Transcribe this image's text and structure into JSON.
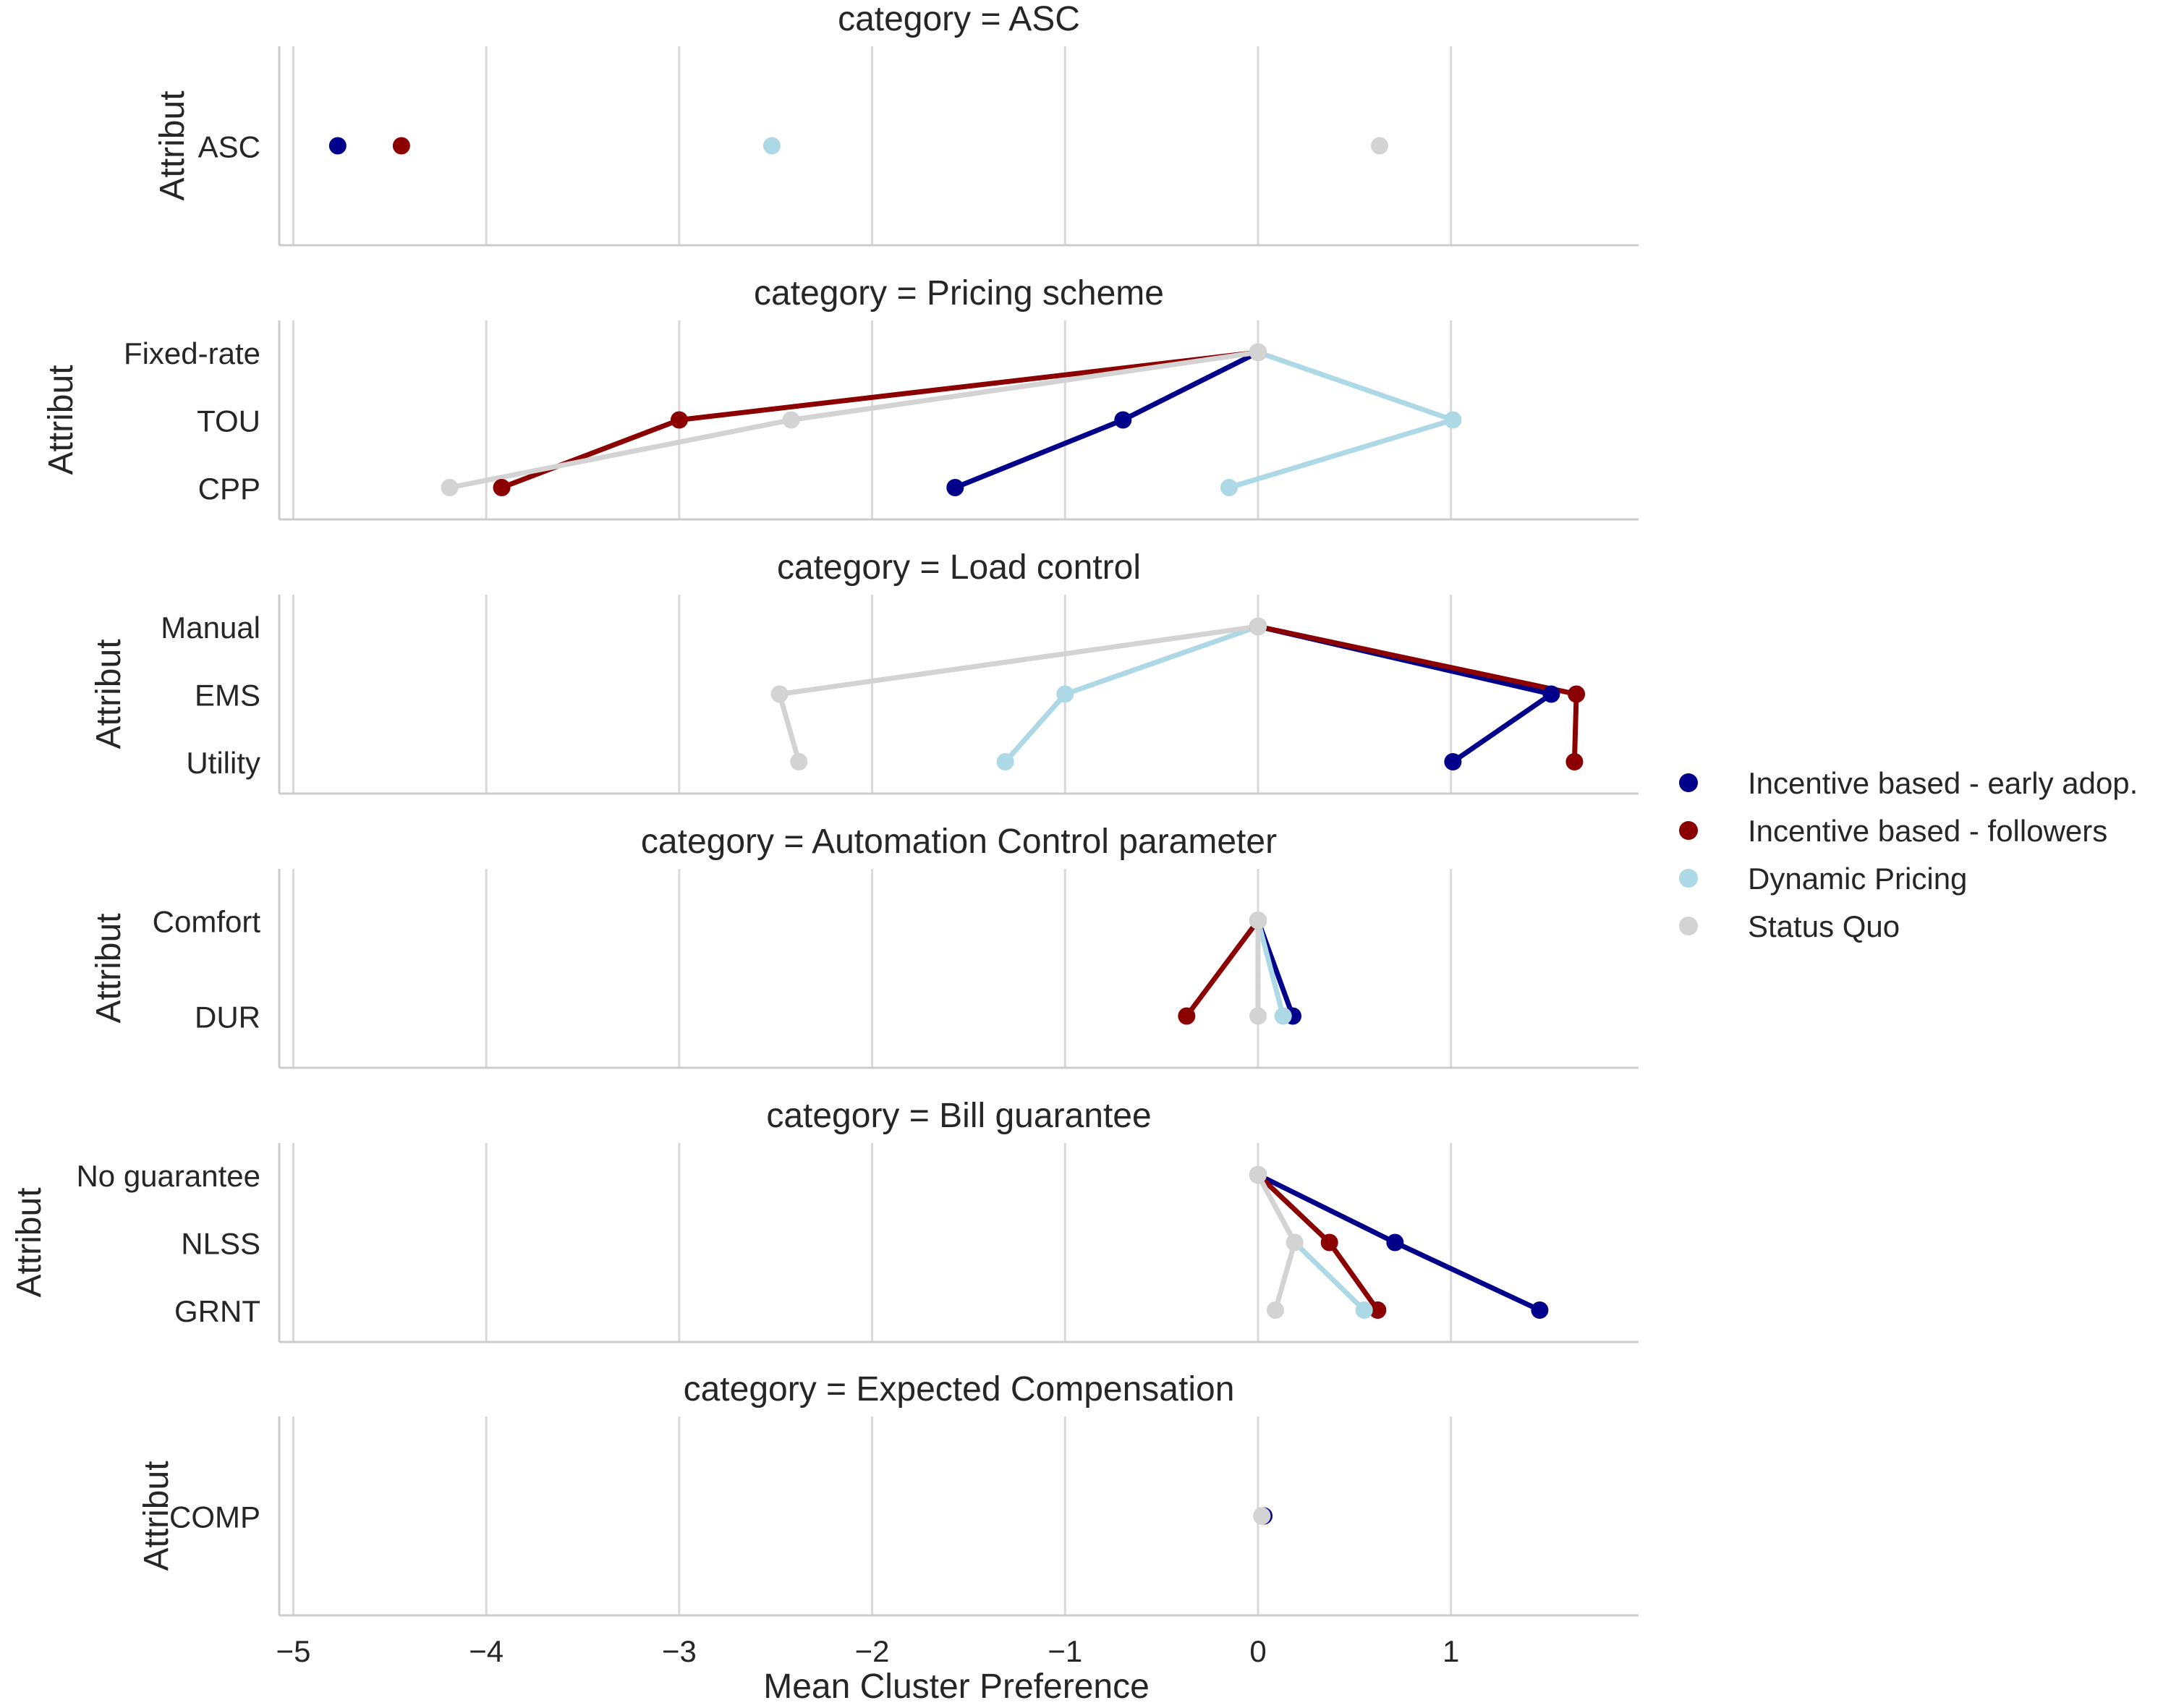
{
  "chart_data": {
    "type": "line",
    "layout": "faceted",
    "xlabel": "Mean Cluster Preference",
    "ylabel": "Attribut",
    "xlim": [
      -5.1,
      1.95
    ],
    "xticks": [
      -5,
      -4,
      -3,
      -2,
      -1,
      0,
      1
    ],
    "xtick_labels": [
      "−5",
      "−4",
      "−3",
      "−2",
      "−1",
      "0",
      "1"
    ],
    "grid": "vertical",
    "legend_position": "right",
    "series": [
      {
        "name": "Incentive based - early adop.",
        "color": "#00008b"
      },
      {
        "name": "Incentive based - followers",
        "color": "#8b0000"
      },
      {
        "name": "Dynamic Pricing",
        "color": "#add8e6"
      },
      {
        "name": "Status Quo",
        "color": "#d3d3d3"
      }
    ],
    "facets": [
      {
        "title": "category = ASC",
        "categories": [
          "ASC"
        ],
        "values": [
          [
            -4.77
          ],
          [
            -4.44
          ],
          [
            -2.52
          ],
          [
            0.63
          ]
        ]
      },
      {
        "title": "category = Pricing scheme",
        "categories": [
          "Fixed-rate",
          "TOU",
          "CPP"
        ],
        "values": [
          [
            0,
            -0.7,
            -1.57
          ],
          [
            0,
            -3.0,
            -3.92
          ],
          [
            0,
            1.01,
            -0.15
          ],
          [
            0,
            -2.42,
            -4.19
          ]
        ]
      },
      {
        "title": "category = Load control",
        "categories": [
          "Manual",
          "EMS",
          "Utility"
        ],
        "values": [
          [
            0,
            1.52,
            1.01
          ],
          [
            0,
            1.65,
            1.64
          ],
          [
            0,
            -1.0,
            -1.31
          ],
          [
            0,
            -2.48,
            -2.38
          ]
        ]
      },
      {
        "title": "category = Automation Control parameter",
        "categories": [
          "Comfort",
          "DUR"
        ],
        "values": [
          [
            0,
            0.18
          ],
          [
            0,
            -0.37
          ],
          [
            0,
            0.13
          ],
          [
            0,
            0.0
          ]
        ]
      },
      {
        "title": "category = Bill guarantee",
        "categories": [
          "No guarantee",
          "NLSS",
          "GRNT"
        ],
        "values": [
          [
            0,
            0.71,
            1.46
          ],
          [
            0,
            0.37,
            0.62
          ],
          [
            0,
            0.19,
            0.55
          ],
          [
            0,
            0.19,
            0.09
          ]
        ]
      },
      {
        "title": "category = Expected Compensation",
        "categories": [
          "COMP"
        ],
        "values": [
          [
            0.03
          ],
          [
            0.02
          ],
          [
            0.02
          ],
          [
            0.02
          ]
        ]
      }
    ]
  }
}
